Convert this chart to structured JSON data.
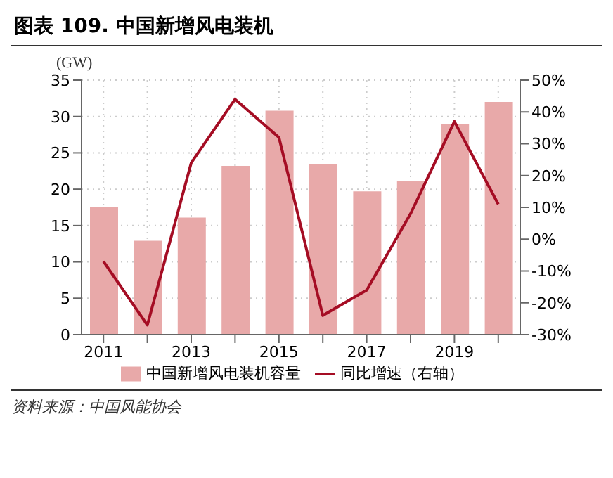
{
  "chart_data": {
    "type": "bar",
    "title": "图表 109. 中国新增风电装机",
    "ylabel": "(GW)",
    "categories": [
      "2011",
      null,
      "2013",
      null,
      "2015",
      null,
      "2017",
      null,
      "2019",
      null
    ],
    "series": [
      {
        "name": "中国新增风电装机容量",
        "color": "#e8a9a9",
        "values": [
          17.6,
          12.9,
          16.1,
          23.2,
          30.8,
          23.4,
          19.7,
          21.1,
          28.9,
          32.0
        ]
      },
      {
        "name": "同比增速（右轴）",
        "type": "line",
        "axis": "y2",
        "color": "#a50d24",
        "values": [
          -7,
          -27,
          24,
          44,
          32,
          -24,
          -16,
          8,
          37,
          11
        ]
      }
    ],
    "ylim": [
      0,
      35
    ],
    "yticks": [
      0,
      5,
      10,
      15,
      20,
      25,
      30,
      35
    ],
    "y2lim": [
      -30,
      50
    ],
    "y2ticks": [
      {
        "value": -30,
        "label": "-30%"
      },
      {
        "value": -20,
        "label": "-20%"
      },
      {
        "value": -10,
        "label": "-10%"
      },
      {
        "value": 0,
        "label": "0%"
      },
      {
        "value": 10,
        "label": "10%"
      },
      {
        "value": 20,
        "label": "20%"
      },
      {
        "value": 30,
        "label": "30%"
      },
      {
        "value": 40,
        "label": "40%"
      },
      {
        "value": 50,
        "label": "50%"
      }
    ],
    "grid": true,
    "legend": "bottom",
    "marker": "none",
    "line_style": "solid",
    "annotations": [
      "资料来源：中国风能协会"
    ]
  }
}
